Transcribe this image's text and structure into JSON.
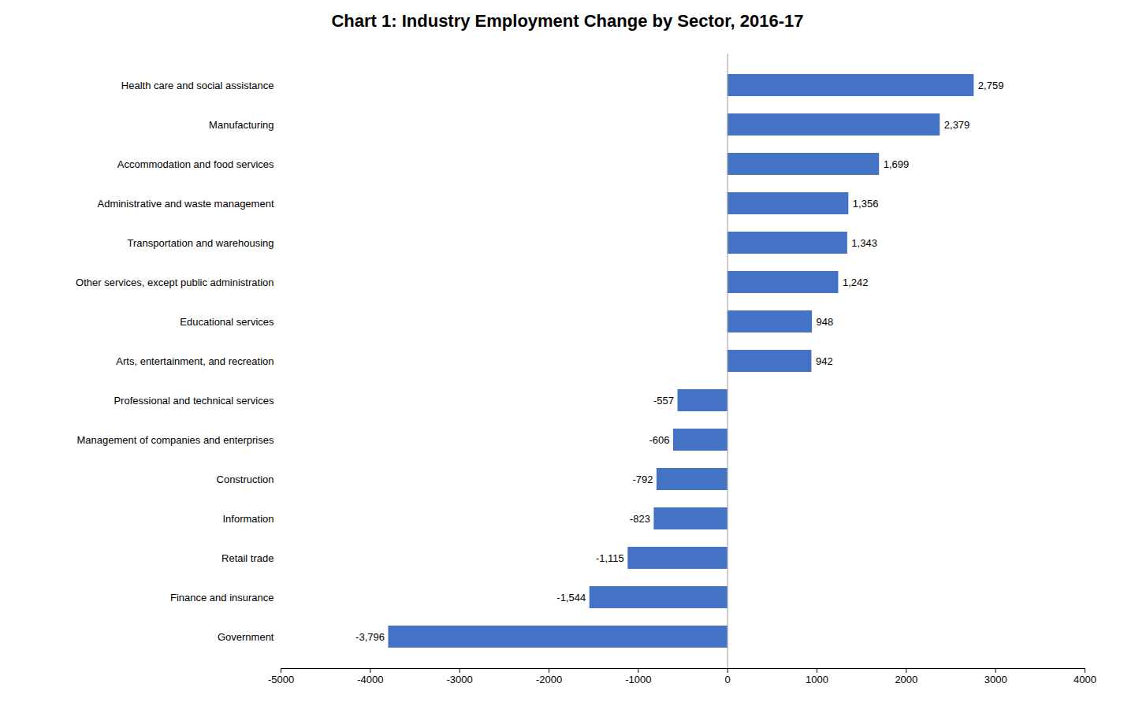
{
  "chart_data": {
    "type": "bar",
    "orientation": "horizontal",
    "title": "Chart 1: Industry Employment Change by Sector, 2016-17",
    "categories": [
      "Health care and social assistance",
      "Manufacturing",
      "Accommodation and food services",
      "Administrative and waste management",
      "Transportation and warehousing",
      "Other services, except public administration",
      "Educational services",
      "Arts, entertainment, and recreation",
      "Professional and technical services",
      "Management of companies and enterprises",
      "Construction",
      "Information",
      "Retail trade",
      "Finance and insurance",
      "Government"
    ],
    "values": [
      2759,
      2379,
      1699,
      1356,
      1343,
      1242,
      948,
      942,
      -557,
      -606,
      -792,
      -823,
      -1115,
      -1544,
      -3796
    ],
    "value_labels": [
      "2,759",
      "2,379",
      "1,699",
      "1,356",
      "1,343",
      "1,242",
      "948",
      "942",
      "-557",
      "-606",
      "-792",
      "-823",
      "-1,115",
      "-1,544",
      "-3,796"
    ],
    "data_labels": true,
    "color": "#4472C4",
    "xlim": [
      -5000,
      4000
    ],
    "xticks": [
      -5000,
      -4000,
      -3000,
      -2000,
      -1000,
      0,
      1000,
      2000,
      3000,
      4000
    ],
    "grid": false
  }
}
